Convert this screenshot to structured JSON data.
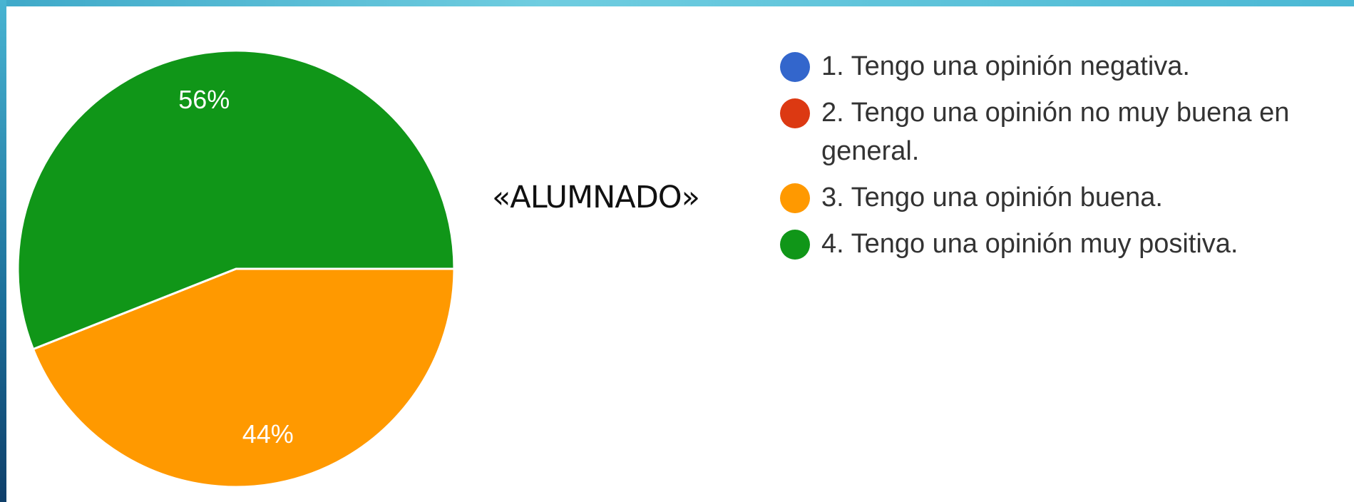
{
  "chart_data": {
    "type": "pie",
    "categories": [
      "1. Tengo una opinión negativa.",
      "2. Tengo una opinión no muy buena en general.",
      "3. Tengo una opinión buena.",
      "4. Tengo una opinión muy positiva."
    ],
    "values": [
      0,
      0,
      44,
      56
    ],
    "value_labels": [
      null,
      null,
      "44%",
      "56%"
    ],
    "colors": [
      "#3366cc",
      "#dc3912",
      "#ff9900",
      "#109618"
    ],
    "annotation": "«ALUMNADO»"
  }
}
